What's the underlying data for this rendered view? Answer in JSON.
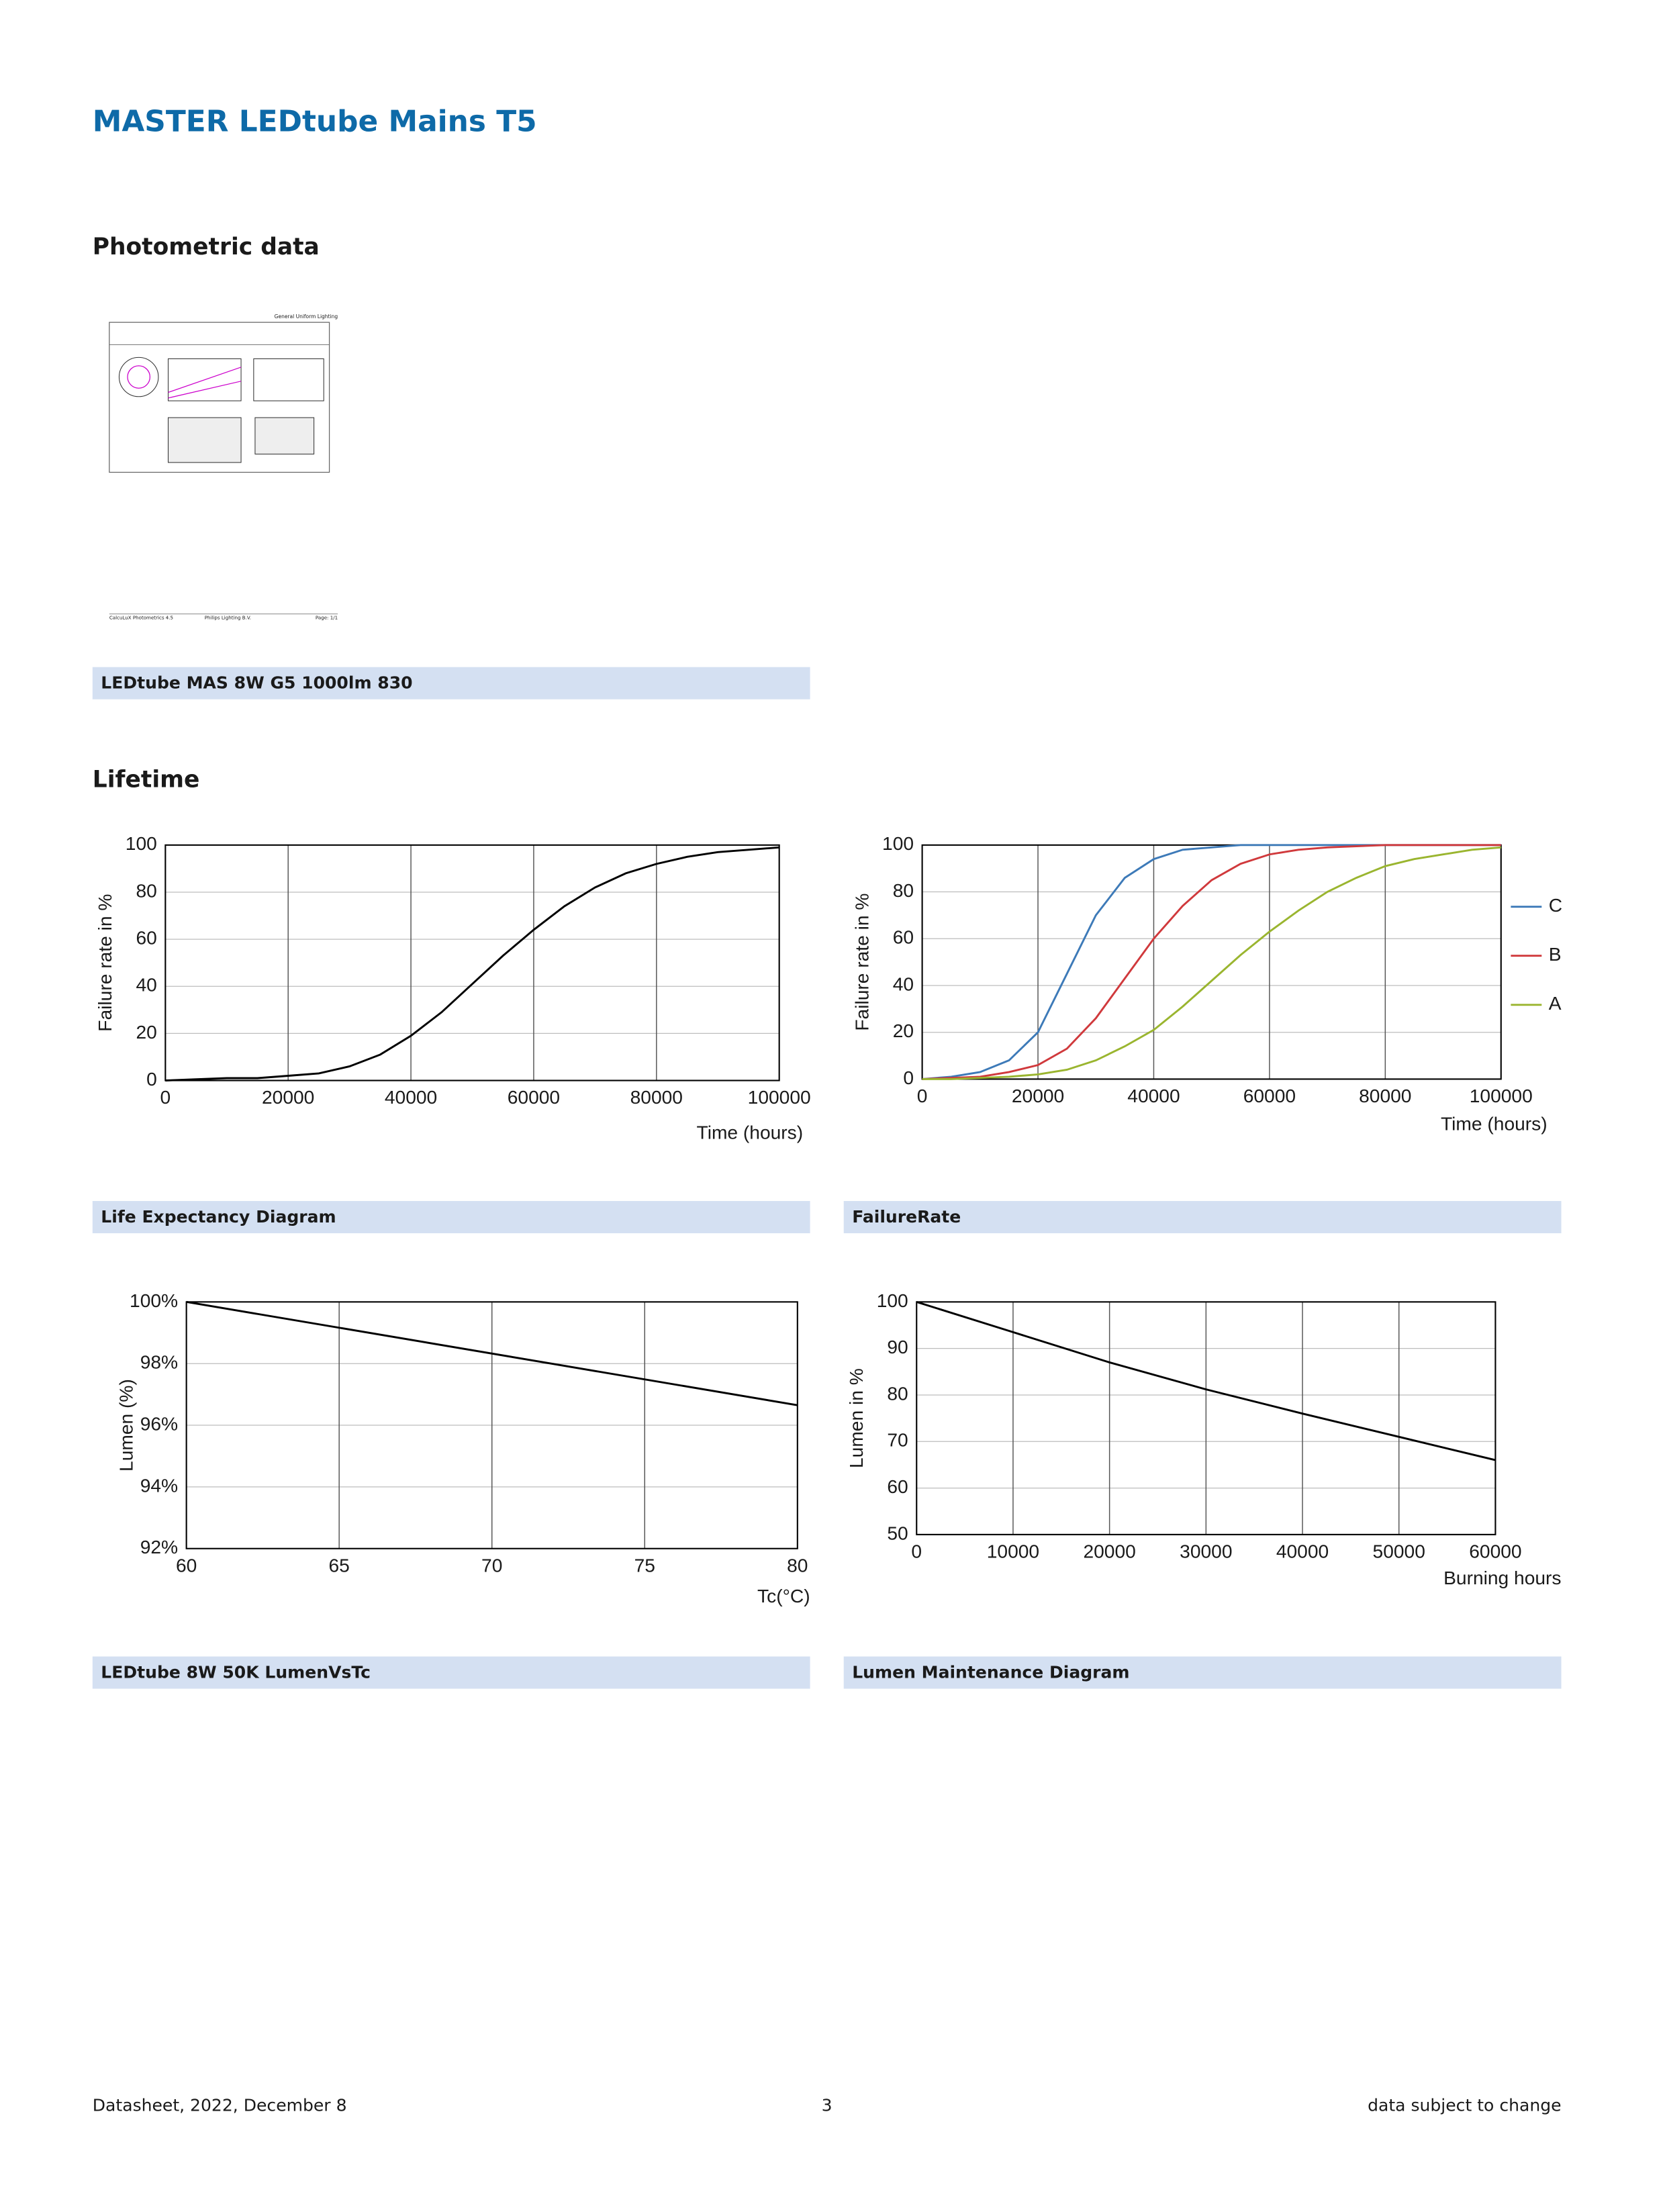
{
  "header": {
    "title": "MASTER LEDtube Mains T5"
  },
  "sections": {
    "photometric": "Photometric data",
    "lifetime": "Lifetime"
  },
  "photometric": {
    "header": "General Uniform Lighting",
    "footer": [
      "CalcuLuX Photometrics 4.5",
      "Philips Lighting B.V.",
      "Page: 1/1"
    ],
    "caption": "LEDtube MAS 8W G5 1000lm 830"
  },
  "chart_data": [
    {
      "type": "line",
      "title": "Life Expectancy Diagram",
      "y_label": "Failure rate in %",
      "x_label": "Time (hours)",
      "x": [
        0,
        5000,
        10000,
        15000,
        20000,
        25000,
        30000,
        35000,
        40000,
        45000,
        50000,
        55000,
        60000,
        65000,
        70000,
        75000,
        80000,
        85000,
        90000,
        95000,
        100000
      ],
      "series": [
        {
          "name": null,
          "color": "#000000",
          "values": [
            0,
            0.5,
            1,
            1,
            2,
            3,
            6,
            11,
            19,
            29,
            41,
            53,
            64,
            74,
            82,
            88,
            92,
            95,
            97,
            98,
            99
          ]
        }
      ],
      "xlim": [
        0,
        100000
      ],
      "xticks": [
        0,
        20000,
        40000,
        60000,
        80000,
        100000
      ],
      "ylim": [
        0,
        100
      ],
      "yticks": [
        0,
        20,
        40,
        60,
        80,
        100
      ],
      "grid": true
    },
    {
      "type": "line",
      "title": "FailureRate",
      "y_label": "Failure rate in %",
      "x_label": "Time (hours)",
      "x": [
        0,
        5000,
        10000,
        15000,
        20000,
        25000,
        30000,
        35000,
        40000,
        45000,
        50000,
        55000,
        60000,
        65000,
        70000,
        75000,
        80000,
        85000,
        90000,
        95000,
        100000
      ],
      "series": [
        {
          "name": "C",
          "color": "#3d7ab8",
          "values": [
            0,
            1,
            3,
            8,
            20,
            45,
            70,
            86,
            94,
            98,
            99,
            100,
            100,
            100,
            100,
            100,
            100,
            100,
            100,
            100,
            100
          ]
        },
        {
          "name": "B",
          "color": "#d0393c",
          "values": [
            0,
            0.5,
            1,
            3,
            6,
            13,
            26,
            43,
            60,
            74,
            85,
            92,
            96,
            98,
            99,
            99.5,
            100,
            100,
            100,
            100,
            100
          ]
        },
        {
          "name": "A",
          "color": "#9ab52f",
          "values": [
            0,
            0,
            0.5,
            1,
            2,
            4,
            8,
            14,
            21,
            31,
            42,
            53,
            63,
            72,
            80,
            86,
            91,
            94,
            96,
            98,
            99
          ]
        }
      ],
      "xlim": [
        0,
        100000
      ],
      "xticks": [
        0,
        20000,
        40000,
        60000,
        80000,
        100000
      ],
      "ylim": [
        0,
        100
      ],
      "yticks": [
        0,
        20,
        40,
        60,
        80,
        100
      ],
      "grid": true,
      "legend": "right"
    },
    {
      "type": "line",
      "title": "LEDtube 8W 50K LumenVsTc",
      "y_label": "Lumen (%)",
      "x_label": "Tc(°C)",
      "x": [
        60,
        80
      ],
      "series": [
        {
          "name": null,
          "color": "#000000",
          "values": [
            100,
            96.65
          ]
        }
      ],
      "xlim": [
        60,
        80
      ],
      "xticks": [
        60,
        65,
        70,
        75,
        80
      ],
      "ylim": [
        92,
        100
      ],
      "yticks": [
        {
          "value": 92,
          "label": "92%"
        },
        {
          "value": 94,
          "label": "94%"
        },
        {
          "value": 96,
          "label": "96%"
        },
        {
          "value": 98,
          "label": "98%"
        },
        {
          "value": 100,
          "label": "100%"
        }
      ],
      "grid": true
    },
    {
      "type": "line",
      "title": "Lumen Maintenance Diagram",
      "y_label": "Lumen in %",
      "x_label": "Burning hours",
      "x": [
        0,
        10000,
        20000,
        30000,
        40000,
        50000,
        60000
      ],
      "series": [
        {
          "name": null,
          "color": "#000000",
          "values": [
            100,
            93.5,
            87,
            81.2,
            76,
            71,
            66
          ]
        }
      ],
      "xlim": [
        0,
        60000
      ],
      "xticks": [
        0,
        10000,
        20000,
        30000,
        40000,
        50000,
        60000
      ],
      "ylim": [
        50,
        100
      ],
      "yticks": [
        50,
        60,
        70,
        80,
        90,
        100
      ],
      "grid": true
    }
  ],
  "footer": {
    "left": "Datasheet, 2022, December 8",
    "center": "3",
    "right": "data subject to change"
  }
}
